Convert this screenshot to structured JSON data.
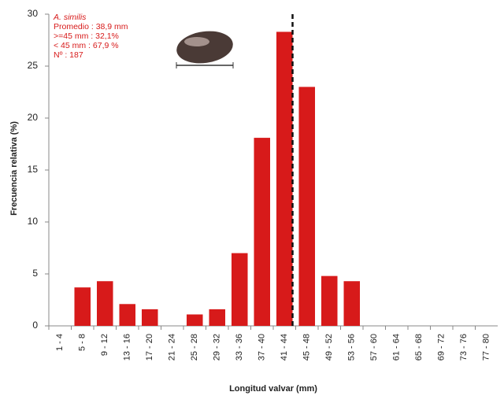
{
  "chart_data": {
    "type": "bar",
    "x_label": "Longitud valvar (mm)",
    "y_label": "Frecuencia relativa (%)",
    "annotations": [
      "A. similis",
      "Promedio : 38,9 mm",
      ">=45 mm : 32,1%",
      " < 45 mm : 67,9 %",
      "Nº : 187"
    ],
    "categories": [
      "1 - 4",
      "5 - 8",
      "9 - 12",
      "13 - 16",
      "17 - 20",
      "21 - 24",
      "25 - 28",
      "29 - 32",
      "33 - 36",
      "37 - 40",
      "41 - 44",
      "45 - 48",
      "49 - 52",
      "53 - 56",
      "57 - 60",
      "61 - 64",
      "65 - 68",
      "69 - 72",
      "73 - 76",
      "77 - 80"
    ],
    "values": [
      0,
      3.7,
      4.3,
      2.1,
      1.6,
      0,
      1.1,
      1.6,
      7.0,
      18.1,
      28.3,
      23.0,
      4.8,
      4.3,
      0,
      0,
      0,
      0,
      0,
      0
    ],
    "color": "#d71a1a",
    "ylim": [
      0,
      30
    ],
    "yticks": [
      0,
      5,
      10,
      15,
      20,
      25,
      30
    ],
    "grid": false
  }
}
